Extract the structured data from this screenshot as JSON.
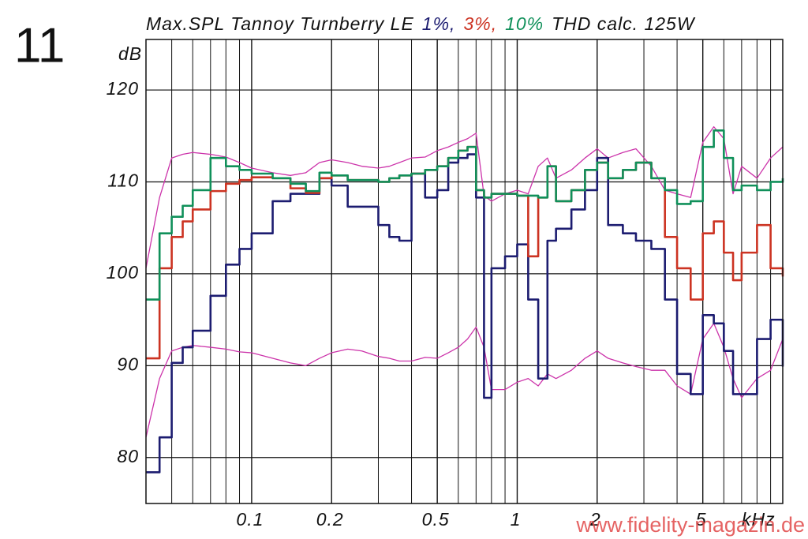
{
  "figure_number": "11",
  "chart_data": {
    "type": "line",
    "title": "Max.SPL Tannoy Turnberry LE",
    "legend_separator": ",",
    "title_suffix": "THD calc. 125W",
    "y_unit": "dB",
    "x_unit": "kHz",
    "xscale": "log",
    "grid": true,
    "xlim": [
      0.04,
      10
    ],
    "ylim": [
      75,
      125.5
    ],
    "yticks": [
      80,
      90,
      100,
      110,
      120
    ],
    "xticks": [
      0.1,
      0.2,
      0.5,
      1,
      2,
      5
    ],
    "minor_xticks": [
      0.05,
      0.06,
      0.07,
      0.08,
      0.09,
      0.3,
      0.4,
      0.6,
      0.7,
      0.8,
      0.9,
      3,
      4,
      6,
      7,
      8,
      9
    ],
    "x": [
      0.04,
      0.045,
      0.05,
      0.055,
      0.06,
      0.07,
      0.08,
      0.09,
      0.1,
      0.12,
      0.14,
      0.16,
      0.18,
      0.2,
      0.23,
      0.26,
      0.3,
      0.33,
      0.36,
      0.4,
      0.45,
      0.5,
      0.55,
      0.6,
      0.65,
      0.7,
      0.75,
      0.8,
      0.9,
      1,
      1.1,
      1.2,
      1.3,
      1.4,
      1.6,
      1.8,
      2,
      2.2,
      2.5,
      2.8,
      3.2,
      3.6,
      4,
      4.5,
      5,
      5.5,
      6,
      6.5,
      7,
      8,
      9,
      10
    ],
    "series": [
      {
        "color": "#cc33aa",
        "step": false,
        "values": [
          100.6,
          108.3,
          112.6,
          113,
          113.2,
          113,
          112.7,
          112.1,
          111.5,
          111,
          110.7,
          111,
          112.1,
          112.4,
          112.1,
          111.7,
          111.5,
          111.7,
          112.1,
          112.6,
          112.7,
          113.4,
          113.8,
          114.3,
          114.7,
          115.3,
          108.5,
          107.9,
          108.7,
          109.1,
          108.7,
          111.7,
          112.6,
          110.4,
          111.3,
          112.6,
          113.6,
          112.6,
          113.2,
          113.6,
          111.7,
          109.1,
          108.7,
          108.3,
          114.3,
          116,
          114.7,
          108.7,
          111.7,
          110.4,
          112.6,
          113.8
        ]
      },
      {
        "color": "#cc33aa",
        "step": false,
        "values": [
          82.2,
          88.6,
          91.6,
          92,
          92.2,
          92,
          91.8,
          91.5,
          91.4,
          90.8,
          90.3,
          90,
          90.8,
          91.4,
          91.8,
          91.6,
          91,
          90.8,
          90.5,
          90.5,
          90.9,
          90.8,
          91.4,
          92,
          92.9,
          94.2,
          92,
          87.4,
          87.4,
          88.2,
          88.6,
          87.8,
          89.1,
          88.6,
          89.5,
          90.8,
          91.6,
          90.8,
          90.3,
          89.9,
          89.5,
          89.5,
          87.8,
          86.9,
          92.9,
          94.6,
          92,
          88.6,
          86.5,
          88.6,
          89.5,
          92.9
        ]
      },
      {
        "name": "1%",
        "color": "#1c1c70",
        "step": true,
        "values": [
          78.4,
          82.2,
          90.3,
          92,
          93.8,
          97.6,
          101,
          102.7,
          104.4,
          107.9,
          108.7,
          108.7,
          110.4,
          109.6,
          107.3,
          107.3,
          105.3,
          104,
          103.6,
          110.9,
          108.3,
          109.1,
          112.1,
          112.6,
          113,
          108.3,
          86.5,
          100.6,
          101.9,
          103.2,
          97.2,
          88.6,
          103.6,
          104.9,
          107,
          109.1,
          112.6,
          105.3,
          104.4,
          103.6,
          102.7,
          97.2,
          89.1,
          86.9,
          95.5,
          94.6,
          91.6,
          86.9,
          86.9,
          92.9,
          95,
          89.9
        ]
      },
      {
        "name": "3%",
        "color": "#cc3322",
        "step": true,
        "values": [
          90.8,
          100.6,
          104,
          105.7,
          107,
          109,
          109.8,
          110.2,
          110.5,
          110.4,
          109.3,
          108.8,
          110.4,
          110.7,
          110.2,
          110.2,
          110,
          110.4,
          110.7,
          110.9,
          111.3,
          111.7,
          112.6,
          113.4,
          113.8,
          109.1,
          108.3,
          108.7,
          108.7,
          108.5,
          101.9,
          108.3,
          111.7,
          107.9,
          109.1,
          111.3,
          112.1,
          110.4,
          111.3,
          112.1,
          110.4,
          104,
          100.6,
          97.2,
          104.4,
          105.7,
          102.3,
          99.3,
          102.3,
          105.3,
          100.6,
          99.7
        ]
      },
      {
        "name": "10%",
        "color": "#10905a",
        "step": true,
        "values": [
          97.2,
          104.4,
          106.2,
          107.4,
          109.1,
          112.6,
          111.7,
          111.3,
          110.9,
          110.4,
          109.8,
          109,
          111,
          110.7,
          110.2,
          110.2,
          110,
          110.4,
          110.7,
          110.9,
          111.3,
          111.7,
          112.6,
          113.4,
          113.8,
          109.1,
          108.3,
          108.7,
          108.7,
          108.5,
          108.5,
          108.3,
          111.7,
          107.9,
          109.1,
          111.3,
          112.1,
          110.4,
          111.3,
          112.1,
          110.4,
          109.1,
          107.6,
          107.9,
          113.8,
          115.6,
          112.6,
          109.1,
          109.6,
          109.1,
          110,
          110.4
        ]
      }
    ]
  },
  "watermark": "www.fidelity-magazin.de"
}
